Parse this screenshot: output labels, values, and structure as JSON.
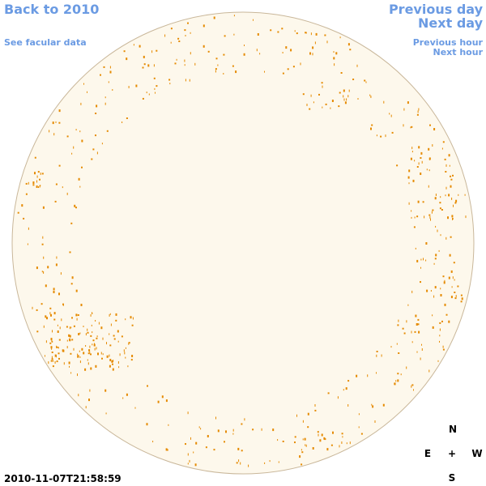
{
  "links": {
    "back": "Back to 2010",
    "facular": "See facular data",
    "previous_day": "Previous day",
    "next_day": "Next day",
    "previous_hour": "Previous hour",
    "next_hour": "Next hour"
  },
  "timestamp": "2010-11-07T21:58:59",
  "compass": {
    "north": "N",
    "east": "E",
    "center": "+",
    "west": "W",
    "south": "S"
  }
}
